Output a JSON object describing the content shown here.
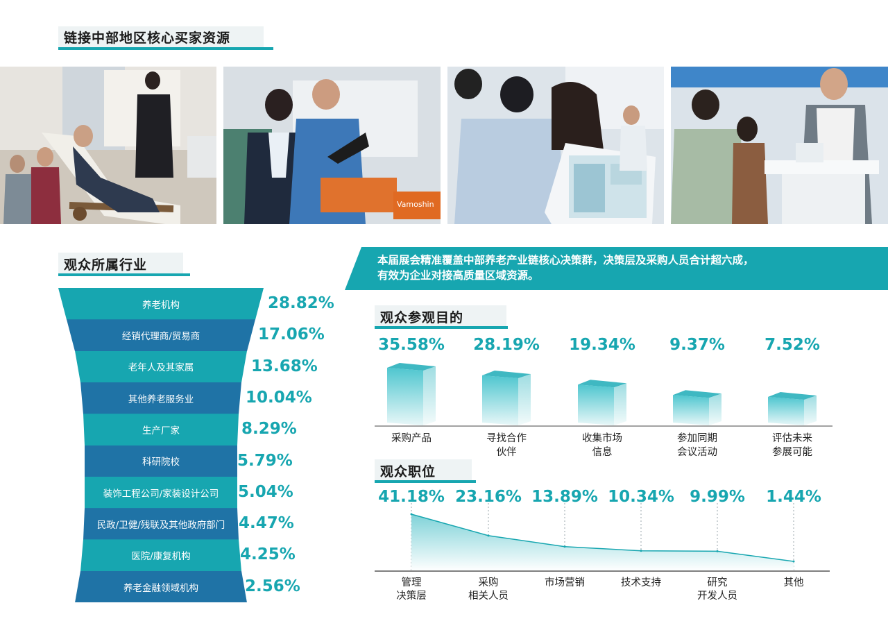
{
  "header": {
    "title": "链接中部地区核心买家资源"
  },
  "photos": [
    {
      "name": "expo-photo-bed"
    },
    {
      "name": "expo-photo-shoes",
      "brand": "Vamoshin"
    },
    {
      "name": "expo-photo-tablet"
    },
    {
      "name": "expo-photo-device"
    }
  ],
  "industry": {
    "title": "观众所属行业",
    "items": [
      {
        "label": "养老机构",
        "pct": "28.82%"
      },
      {
        "label": "经销代理商/贸易商",
        "pct": "17.06%"
      },
      {
        "label": "老年人及其家属",
        "pct": "13.68%"
      },
      {
        "label": "其他养老服务业",
        "pct": "10.04%"
      },
      {
        "label": "生产厂家",
        "pct": "8.29%"
      },
      {
        "label": "科研院校",
        "pct": "5.79%"
      },
      {
        "label": "装饰工程公司/家装设计公司",
        "pct": "5.04%"
      },
      {
        "label": "民政/卫健/残联及其他政府部门",
        "pct": "4.47%"
      },
      {
        "label": "医院/康复机构",
        "pct": "4.25%"
      },
      {
        "label": "养老金融领域机构",
        "pct": "2.56%"
      }
    ]
  },
  "banner": {
    "line1": "本届展会精准覆盖中部养老产业链核心决策群，决策层及采购人员合计超六成，",
    "line2": "有效为企业对接高质量区域资源。"
  },
  "purpose": {
    "title": "观众参观目的"
  },
  "position": {
    "title": "观众职位"
  },
  "chart_data": [
    {
      "type": "bar",
      "title": "观众所属行业",
      "categories": [
        "养老机构",
        "经销代理商/贸易商",
        "老年人及其家属",
        "其他养老服务业",
        "生产厂家",
        "科研院校",
        "装饰工程公司/家装设计公司",
        "民政/卫健/残联及其他政府部门",
        "医院/康复机构",
        "养老金融领域机构"
      ],
      "values": [
        28.82,
        17.06,
        13.68,
        10.04,
        8.29,
        5.79,
        5.04,
        4.47,
        4.25,
        2.56
      ]
    },
    {
      "type": "bar",
      "title": "观众参观目的",
      "categories": [
        "采购产品",
        "寻找合作\n伙伴",
        "收集市场\n信息",
        "参加同期\n会议活动",
        "评估未来\n参展可能"
      ],
      "values": [
        35.58,
        28.19,
        19.34,
        9.37,
        7.52
      ],
      "labels": [
        "35.58%",
        "28.19%",
        "19.34%",
        "9.37%",
        "7.52%"
      ]
    },
    {
      "type": "area",
      "title": "观众职位",
      "categories": [
        "管理\n决策层",
        "采购\n相关人员",
        "市场营销",
        "技术支持",
        "研究\n开发人员",
        "其他"
      ],
      "values": [
        41.18,
        23.16,
        13.89,
        10.34,
        9.99,
        1.44
      ],
      "labels": [
        "41.18%",
        "23.16%",
        "13.89%",
        "10.34%",
        "9.99%",
        "1.44%"
      ]
    }
  ]
}
